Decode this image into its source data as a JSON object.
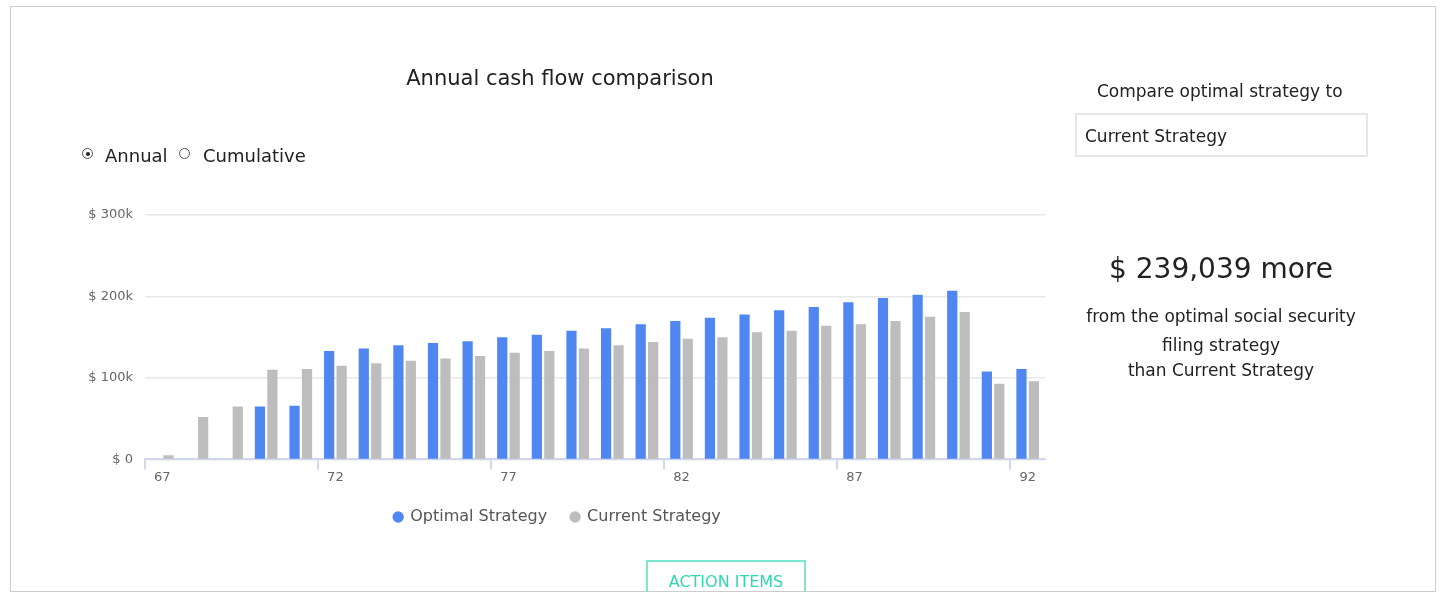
{
  "chart_data": {
    "type": "bar",
    "title": "Annual cash flow comparison",
    "categories": [
      "67",
      null,
      null,
      null,
      null,
      "72",
      null,
      null,
      null,
      null,
      "77",
      null,
      null,
      null,
      null,
      "82",
      null,
      null,
      null,
      null,
      "87",
      null,
      null,
      null,
      null,
      "92"
    ],
    "series": [
      {
        "name": "Optimal Strategy",
        "color": "#5086f1",
        "values": [
          null,
          null,
          null,
          65,
          66,
          133,
          136,
          140,
          143,
          145,
          150,
          153,
          158,
          161,
          166,
          170,
          174,
          178,
          183,
          187,
          193,
          198,
          202,
          207,
          108,
          111
        ]
      },
      {
        "name": "Current Strategy",
        "color": "#bdbdbd",
        "values": [
          5,
          52,
          65,
          110,
          111,
          115,
          118,
          121,
          124,
          127,
          131,
          133,
          136,
          140,
          144,
          148,
          150,
          156,
          158,
          164,
          166,
          170,
          175,
          181,
          93,
          96
        ]
      }
    ],
    "ylim": [
      0,
      300
    ],
    "yticks": [
      {
        "value": 0,
        "label": "$ 0"
      },
      {
        "value": 100,
        "label": "$ 100k"
      },
      {
        "value": 200,
        "label": "$ 200k"
      },
      {
        "value": 300,
        "label": "$ 300k"
      }
    ],
    "grid": "y",
    "legend": "bottom",
    "annotations": [
      "Annual",
      "Cumulative",
      "Compare optimal strategy to",
      "Current Strategy",
      "$ 239,039 more",
      "from the optimal social security filing strategy",
      "than Current Strategy",
      "ACTION ITEMS"
    ]
  }
}
